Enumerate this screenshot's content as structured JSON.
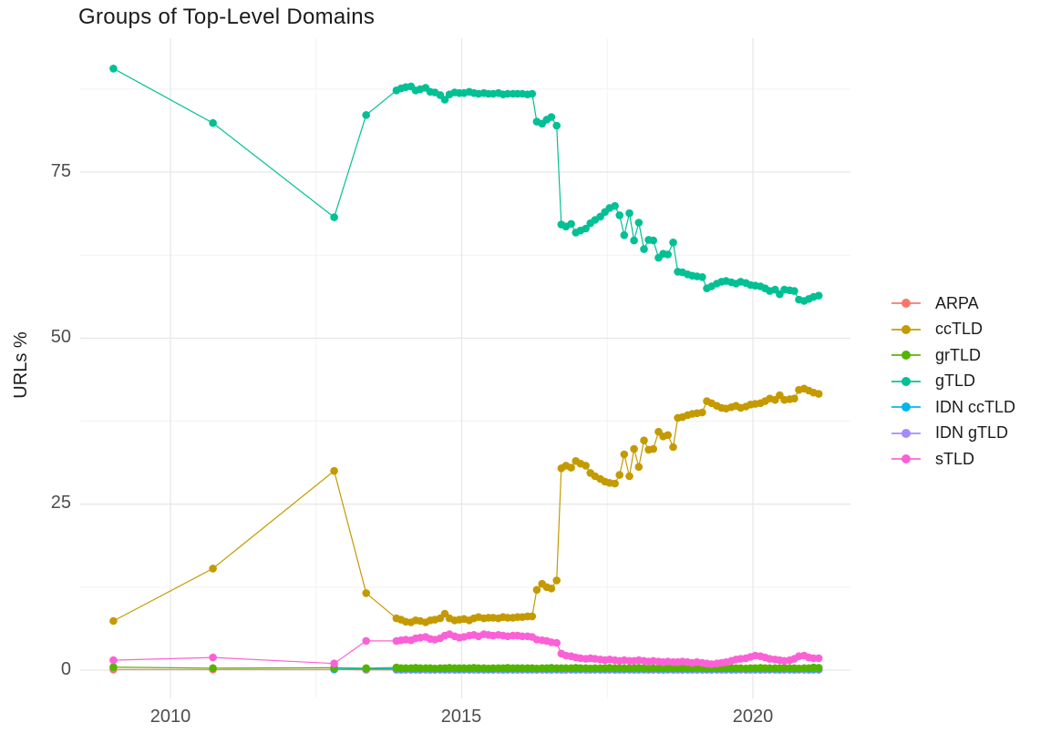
{
  "title": "Groups of Top-Level Domains",
  "y_axis": {
    "label": "URLs %",
    "tick_labels": [
      "0",
      "25",
      "50",
      "75"
    ]
  },
  "x_axis": {
    "tick_labels": [
      "2010",
      "2015",
      "2020"
    ]
  },
  "legend": {
    "items": [
      {
        "id": "arpa",
        "label": "ARPA",
        "color": "#F8766D"
      },
      {
        "id": "cctld",
        "label": "ccTLD",
        "color": "#C49A00"
      },
      {
        "id": "grtld",
        "label": "grTLD",
        "color": "#53B400"
      },
      {
        "id": "gtld",
        "label": "gTLD",
        "color": "#00C094"
      },
      {
        "id": "idn-cctld",
        "label": "IDN ccTLD",
        "color": "#00B6EB"
      },
      {
        "id": "idn-gtld",
        "label": "IDN gTLD",
        "color": "#A58AFF"
      },
      {
        "id": "stld",
        "label": "sTLD",
        "color": "#FB61D7"
      }
    ]
  },
  "chart_data": {
    "type": "line",
    "title": "Groups of Top-Level Domains",
    "xlabel": "",
    "ylabel": "URLs %",
    "xlim": [
      2008.45,
      2021.67
    ],
    "ylim": [
      -4.4,
      95
    ],
    "x_ticks": [
      2010,
      2015,
      2020
    ],
    "x_minor": [
      2012.5,
      2017.5
    ],
    "y_ticks": [
      0,
      25,
      50,
      75
    ],
    "y_minor": [
      12.5,
      37.5,
      62.5,
      87.5
    ],
    "grid": true,
    "legend_position": "right",
    "dense_x": [
      2013.88,
      2013.96,
      2014.04,
      2014.13,
      2014.21,
      2014.29,
      2014.38,
      2014.46,
      2014.54,
      2014.63,
      2014.71,
      2014.79,
      2014.88,
      2014.96,
      2015.04,
      2015.13,
      2015.21,
      2015.29,
      2015.38,
      2015.46,
      2015.54,
      2015.63,
      2015.71,
      2015.79,
      2015.88,
      2015.96,
      2016.04,
      2016.13,
      2016.21,
      2016.29,
      2016.38,
      2016.46,
      2016.54,
      2016.63,
      2016.71,
      2016.79,
      2016.88,
      2016.96,
      2017.04,
      2017.13,
      2017.21,
      2017.29,
      2017.38,
      2017.46,
      2017.54,
      2017.63,
      2017.71,
      2017.79,
      2017.88,
      2017.96,
      2018.04,
      2018.13,
      2018.21,
      2018.29,
      2018.38,
      2018.46,
      2018.54,
      2018.63,
      2018.71,
      2018.79,
      2018.88,
      2018.96,
      2019.04,
      2019.13,
      2019.21,
      2019.29,
      2019.38,
      2019.46,
      2019.54,
      2019.63,
      2019.71,
      2019.79,
      2019.88,
      2019.96,
      2020.04,
      2020.13,
      2020.21,
      2020.29,
      2020.38,
      2020.46,
      2020.54,
      2020.63,
      2020.71,
      2020.79,
      2020.88,
      2020.96,
      2021.04,
      2021.13
    ],
    "series": [
      {
        "name": "ARPA",
        "color": "#F8766D",
        "pre": [
          [
            2009.02,
            0.1
          ],
          [
            2010.73,
            0.1
          ],
          [
            2012.81,
            0.1
          ],
          [
            2013.36,
            0.06
          ]
        ],
        "dense_y": [
          0.05,
          0.05,
          0.05,
          0.05,
          0.05,
          0.05,
          0.05,
          0.05,
          0.05,
          0.05,
          0.05,
          0.05,
          0.05,
          0.05,
          0.05,
          0.05,
          0.05,
          0.05,
          0.05,
          0.05,
          0.05,
          0.05,
          0.05,
          0.05,
          0.05,
          0.05,
          0.05,
          0.05,
          0.05,
          0.05,
          0.05,
          0.05,
          0.05,
          0.05,
          0.05,
          0.05,
          0.05,
          0.05,
          0.05,
          0.05,
          0.05,
          0.05,
          0.05,
          0.05,
          0.05,
          0.05,
          0.05,
          0.05,
          0.05,
          0.05,
          0.05,
          0.05,
          0.05,
          0.05,
          0.05,
          0.05,
          0.05,
          0.05,
          0.05,
          0.05,
          0.05,
          0.05,
          0.05,
          0.05,
          0.05,
          0.05,
          0.05,
          0.05,
          0.05,
          0.05,
          0.05,
          0.05,
          0.05,
          0.05,
          0.05,
          0.05,
          0.05,
          0.05,
          0.05,
          0.05,
          0.05,
          0.05,
          0.05,
          0.05,
          0.05,
          0.05,
          0.05,
          0.05
        ]
      },
      {
        "name": "IDN gTLD",
        "color": "#A58AFF",
        "pre": [],
        "dense_y": [
          0.1,
          0.06,
          0.1,
          0.08,
          0.1,
          0.06,
          0.1,
          0.08,
          0.06,
          0.1,
          0.08,
          0.1,
          0.06,
          0.08,
          0.1,
          0.06,
          0.1,
          0.08,
          0.06,
          0.1,
          0.08,
          0.1,
          0.06,
          0.1,
          0.08,
          0.06,
          0.1,
          0.08,
          0.1,
          0.06,
          0.08,
          0.1,
          0.06,
          0.1,
          0.08,
          0.06,
          0.1,
          0.08,
          0.1,
          0.06,
          0.08,
          0.1,
          0.06,
          0.1,
          0.08,
          0.06,
          0.1,
          0.08,
          0.1,
          0.06,
          0.08,
          0.1,
          0.06,
          0.1,
          0.08,
          0.06,
          0.1,
          0.08,
          0.1,
          0.06,
          0.08,
          0.1,
          0.06,
          0.1,
          0.08,
          0.06,
          0.1,
          0.08,
          0.1,
          0.06,
          0.08,
          0.1,
          0.06,
          0.1,
          0.08,
          0.06,
          0.1,
          0.08,
          0.1,
          0.06,
          0.08,
          0.1,
          0.06,
          0.1,
          0.08,
          0.06,
          0.1,
          0.08
        ]
      },
      {
        "name": "IDN ccTLD",
        "color": "#00B6EB",
        "pre": [
          [
            2012.81,
            0.15
          ],
          [
            2013.36,
            0.2
          ]
        ],
        "dense_y": [
          0.2,
          0.2,
          0.25,
          0.2,
          0.2,
          0.2,
          0.25,
          0.2,
          0.2,
          0.2,
          0.2,
          0.25,
          0.2,
          0.2,
          0.2,
          0.2,
          0.25,
          0.2,
          0.2,
          0.2,
          0.2,
          0.25,
          0.2,
          0.2,
          0.2,
          0.25,
          0.2,
          0.2,
          0.2,
          0.2,
          0.25,
          0.2,
          0.2,
          0.2,
          0.2,
          0.25,
          0.2,
          0.2,
          0.2,
          0.25,
          0.2,
          0.2,
          0.2,
          0.2,
          0.25,
          0.2,
          0.2,
          0.2,
          0.2,
          0.25,
          0.2,
          0.2,
          0.2,
          0.25,
          0.2,
          0.2,
          0.2,
          0.2,
          0.25,
          0.2,
          0.2,
          0.2,
          0.25,
          0.2,
          0.2,
          0.2,
          0.2,
          0.25,
          0.2,
          0.2,
          0.2,
          0.25,
          0.2,
          0.2,
          0.2,
          0.2,
          0.25,
          0.2,
          0.2,
          0.2,
          0.25,
          0.2,
          0.2,
          0.2,
          0.25,
          0.2,
          0.2,
          0.2
        ]
      },
      {
        "name": "grTLD",
        "color": "#53B400",
        "pre": [
          [
            2009.02,
            0.45
          ],
          [
            2010.73,
            0.3
          ],
          [
            2012.81,
            0.35
          ],
          [
            2013.36,
            0.3
          ]
        ],
        "dense_y": [
          0.4,
          0.3,
          0.3,
          0.3,
          0.35,
          0.3,
          0.3,
          0.3,
          0.25,
          0.3,
          0.3,
          0.35,
          0.3,
          0.3,
          0.3,
          0.3,
          0.35,
          0.3,
          0.3,
          0.25,
          0.3,
          0.3,
          0.3,
          0.35,
          0.3,
          0.3,
          0.3,
          0.3,
          0.3,
          0.25,
          0.3,
          0.3,
          0.35,
          0.3,
          0.3,
          0.3,
          0.3,
          0.35,
          0.3,
          0.3,
          0.25,
          0.3,
          0.3,
          0.3,
          0.35,
          0.3,
          0.3,
          0.3,
          0.3,
          0.3,
          0.35,
          0.3,
          0.25,
          0.3,
          0.3,
          0.3,
          0.35,
          0.3,
          0.3,
          0.3,
          0.3,
          0.3,
          0.35,
          0.3,
          0.25,
          0.3,
          0.3,
          0.3,
          0.35,
          0.3,
          0.3,
          0.3,
          0.25,
          0.3,
          0.3,
          0.35,
          0.3,
          0.3,
          0.3,
          0.3,
          0.35,
          0.3,
          0.3,
          0.25,
          0.3,
          0.3,
          0.4,
          0.35
        ]
      },
      {
        "name": "gTLD",
        "color": "#00C094",
        "pre": [
          [
            2009.02,
            90.6
          ],
          [
            2010.73,
            82.4
          ],
          [
            2012.81,
            68.2
          ],
          [
            2013.36,
            83.6
          ]
        ],
        "dense_y": [
          87.3,
          87.6,
          87.8,
          87.9,
          87.3,
          87.5,
          87.7,
          87.1,
          87.0,
          86.6,
          85.9,
          86.7,
          87.0,
          86.9,
          86.9,
          87.1,
          86.9,
          86.8,
          86.9,
          86.8,
          86.8,
          86.9,
          86.7,
          86.8,
          86.8,
          86.8,
          86.8,
          86.7,
          86.8,
          82.6,
          82.3,
          82.9,
          83.3,
          82.0,
          67.1,
          66.8,
          67.2,
          65.9,
          66.2,
          66.5,
          67.3,
          67.8,
          68.3,
          69.0,
          69.6,
          69.9,
          68.5,
          65.5,
          68.8,
          64.7,
          67.4,
          63.4,
          64.8,
          64.7,
          62.1,
          62.7,
          62.6,
          64.4,
          60.0,
          59.9,
          59.6,
          59.4,
          59.3,
          59.2,
          57.5,
          57.8,
          58.2,
          58.5,
          58.6,
          58.4,
          58.2,
          58.5,
          58.3,
          58.0,
          57.9,
          57.8,
          57.5,
          57.1,
          57.3,
          56.6,
          57.3,
          57.2,
          57.1,
          55.8,
          55.6,
          55.9,
          56.2,
          56.4
        ]
      },
      {
        "name": "ccTLD",
        "color": "#C49A00",
        "pre": [
          [
            2009.02,
            7.4
          ],
          [
            2010.73,
            15.3
          ],
          [
            2012.81,
            30.0
          ],
          [
            2013.36,
            11.6
          ]
        ],
        "dense_y": [
          7.8,
          7.6,
          7.3,
          7.2,
          7.5,
          7.4,
          7.2,
          7.5,
          7.6,
          7.8,
          8.5,
          7.8,
          7.5,
          7.6,
          7.7,
          7.5,
          7.8,
          8.0,
          7.8,
          7.9,
          7.9,
          7.8,
          8.0,
          7.9,
          7.9,
          8.0,
          8.0,
          8.1,
          8.1,
          12.1,
          13.0,
          12.5,
          12.3,
          13.5,
          30.4,
          30.8,
          30.5,
          31.5,
          31.1,
          30.8,
          29.7,
          29.2,
          28.8,
          28.4,
          28.2,
          28.1,
          29.4,
          32.5,
          29.2,
          33.3,
          30.6,
          34.6,
          33.2,
          33.3,
          35.9,
          35.2,
          35.4,
          33.6,
          38.0,
          38.1,
          38.4,
          38.6,
          38.7,
          38.8,
          40.5,
          40.2,
          39.8,
          39.5,
          39.4,
          39.6,
          39.8,
          39.5,
          39.7,
          40.0,
          40.1,
          40.2,
          40.5,
          40.9,
          40.7,
          41.4,
          40.7,
          40.8,
          40.9,
          42.2,
          42.4,
          42.1,
          41.8,
          41.6
        ]
      },
      {
        "name": "sTLD",
        "color": "#FB61D7",
        "pre": [
          [
            2009.02,
            1.5
          ],
          [
            2010.73,
            1.9
          ],
          [
            2012.81,
            1.0
          ],
          [
            2013.36,
            4.4
          ]
        ],
        "dense_y": [
          4.4,
          4.5,
          4.6,
          4.5,
          4.8,
          4.9,
          5.0,
          4.7,
          4.6,
          4.8,
          5.2,
          5.4,
          5.1,
          4.9,
          5.0,
          5.2,
          5.3,
          5.1,
          5.4,
          5.3,
          5.2,
          5.3,
          5.2,
          5.1,
          5.2,
          5.2,
          5.1,
          5.1,
          5.0,
          4.6,
          4.5,
          4.4,
          4.2,
          4.1,
          2.5,
          2.2,
          2.1,
          1.9,
          1.8,
          1.7,
          1.8,
          1.7,
          1.6,
          1.5,
          1.6,
          1.5,
          1.4,
          1.5,
          1.4,
          1.4,
          1.5,
          1.4,
          1.3,
          1.4,
          1.3,
          1.2,
          1.3,
          1.2,
          1.2,
          1.3,
          1.2,
          1.1,
          1.2,
          1.1,
          1.0,
          0.9,
          1.0,
          1.1,
          1.2,
          1.4,
          1.6,
          1.7,
          1.8,
          2.0,
          2.2,
          2.1,
          1.9,
          1.7,
          1.6,
          1.5,
          1.4,
          1.5,
          1.7,
          2.1,
          2.2,
          1.9,
          1.8,
          1.8
        ]
      }
    ]
  }
}
